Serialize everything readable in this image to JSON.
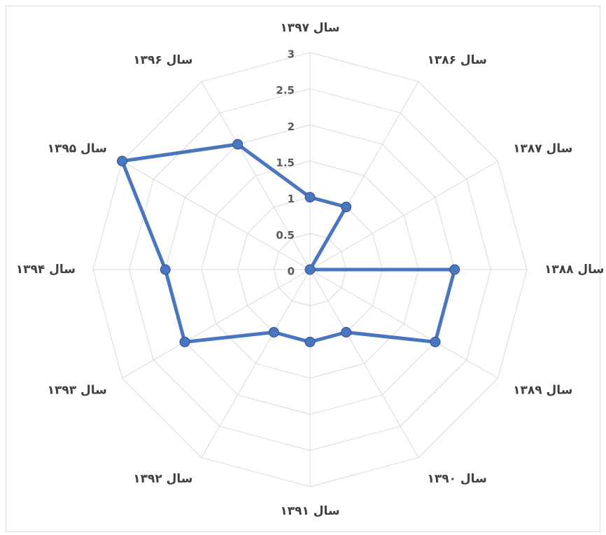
{
  "chart_data": {
    "type": "radar",
    "categories": [
      "سال ۱۳۹۷",
      "سال ۱۳۸۶",
      "سال ۱۳۸۷",
      "سال ۱۳۸۸",
      "سال ۱۳۸۹",
      "سال ۱۳۹۰",
      "سال ۱۳۹۱",
      "سال ۱۳۹۲",
      "سال ۱۳۹۳",
      "سال ۱۳۹۴",
      "سال ۱۳۹۵",
      "سال ۱۳۹۶"
    ],
    "values": [
      1,
      1,
      0,
      2,
      2,
      1,
      1,
      1,
      2,
      2,
      3,
      2
    ],
    "color": "#4a76c0",
    "rlim": [
      0,
      3
    ],
    "rticks": [
      0,
      0.5,
      1,
      1.5,
      2,
      2.5,
      3
    ],
    "grid": true
  }
}
